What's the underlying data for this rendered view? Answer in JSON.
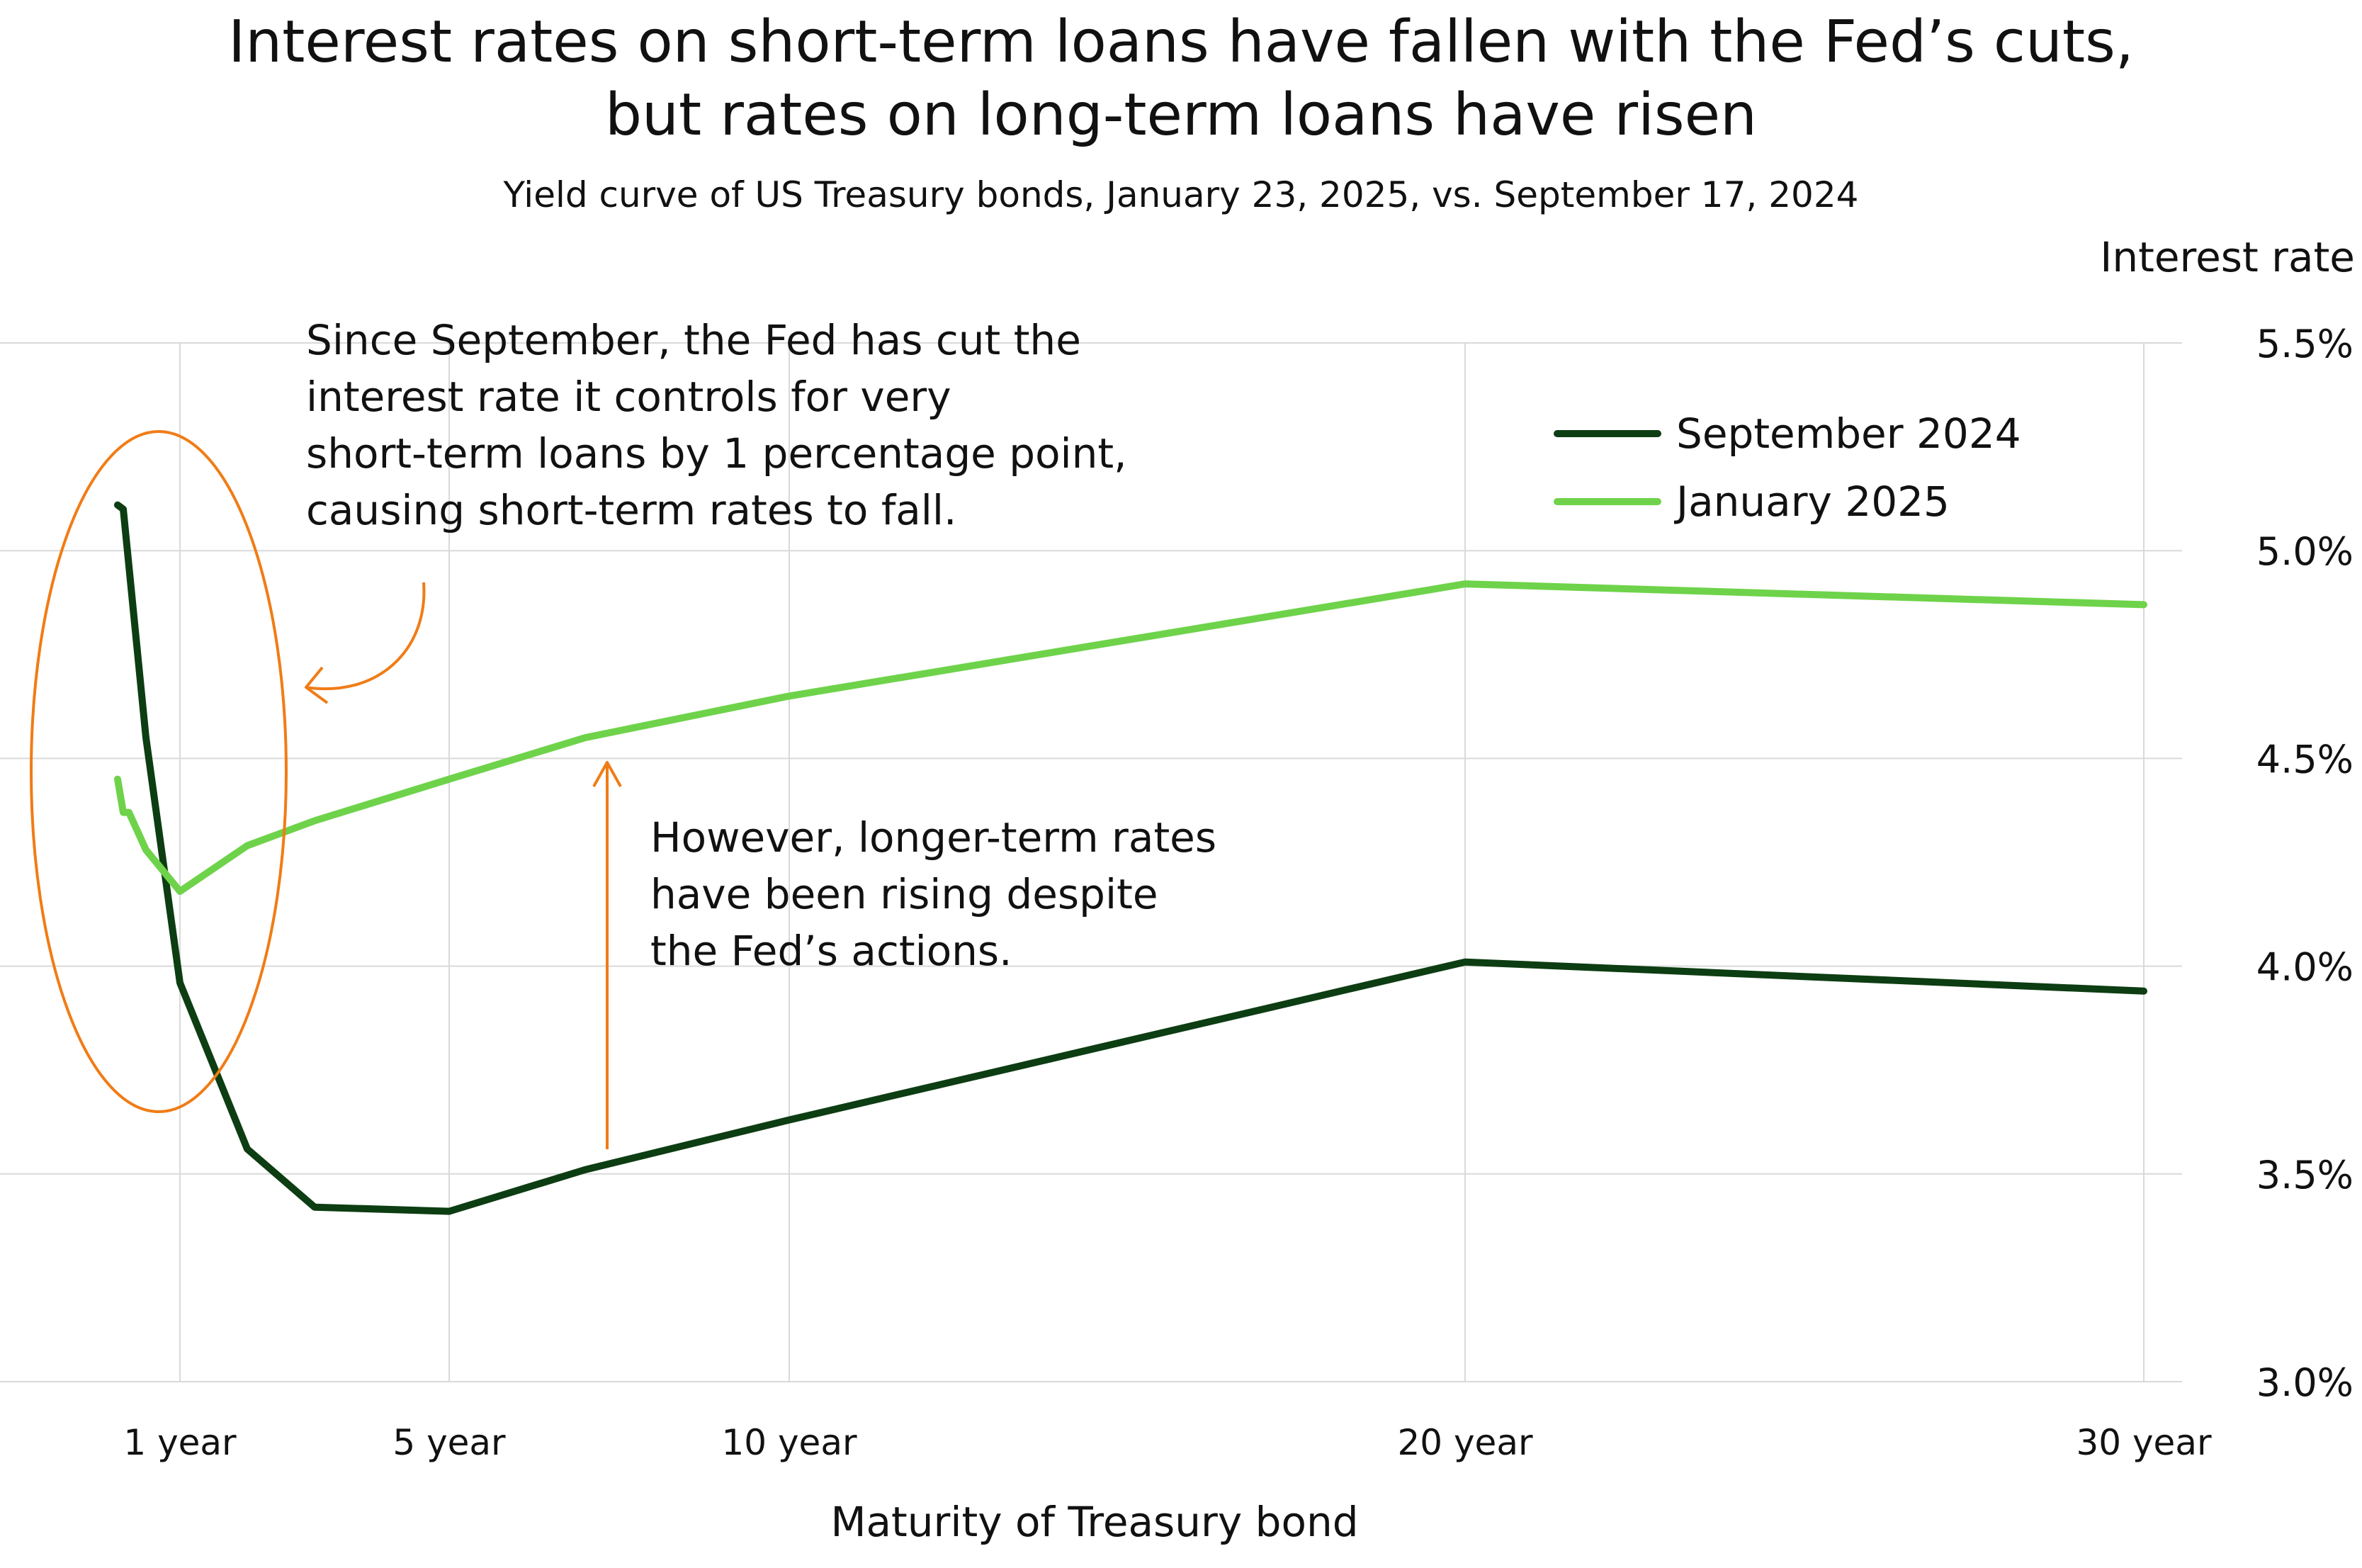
{
  "chart_data": {
    "type": "line",
    "title": "Interest rates on short-term loans have fallen with the Fed’s cuts,",
    "title_line2": "but rates on long-term loans have risen",
    "subtitle": "Yield curve of US Treasury bonds, January 23, 2025, vs. September 17, 2024",
    "ylabel": "Interest rate",
    "xlabel": "Maturity of Treasury bond",
    "ylim": [
      3.0,
      5.5
    ],
    "yticks": [
      {
        "value": 3.0,
        "label": "3.0%"
      },
      {
        "value": 3.5,
        "label": "3.5%"
      },
      {
        "value": 4.0,
        "label": "4.0%"
      },
      {
        "value": 4.5,
        "label": "4.5%"
      },
      {
        "value": 5.0,
        "label": "5.0%"
      },
      {
        "value": 5.5,
        "label": "5.5%"
      }
    ],
    "xticks": [
      {
        "value": 1,
        "label": "1 year"
      },
      {
        "value": 5,
        "label": "5 year"
      },
      {
        "value": 10,
        "label": "10 year"
      },
      {
        "value": 20,
        "label": "20 year"
      },
      {
        "value": 30,
        "label": "30 year"
      }
    ],
    "grid": true,
    "legend_position": "top-right",
    "series": [
      {
        "name": "September 2024",
        "color": "#0d3d12",
        "points": [
          {
            "x": 0.083,
            "y": 5.11
          },
          {
            "x": 0.167,
            "y": 5.1
          },
          {
            "x": 0.5,
            "y": 4.55
          },
          {
            "x": 1,
            "y": 3.96
          },
          {
            "x": 2,
            "y": 3.56
          },
          {
            "x": 3,
            "y": 3.42
          },
          {
            "x": 5,
            "y": 3.41
          },
          {
            "x": 7,
            "y": 3.51
          },
          {
            "x": 10,
            "y": 3.63
          },
          {
            "x": 20,
            "y": 4.01
          },
          {
            "x": 30,
            "y": 3.94
          }
        ]
      },
      {
        "name": "January 2025",
        "color": "#6ed34a",
        "points": [
          {
            "x": 0.083,
            "y": 4.45
          },
          {
            "x": 0.167,
            "y": 4.37
          },
          {
            "x": 0.25,
            "y": 4.37
          },
          {
            "x": 0.5,
            "y": 4.28
          },
          {
            "x": 1,
            "y": 4.18
          },
          {
            "x": 2,
            "y": 4.29
          },
          {
            "x": 3,
            "y": 4.35
          },
          {
            "x": 5,
            "y": 4.45
          },
          {
            "x": 7,
            "y": 4.55
          },
          {
            "x": 10,
            "y": 4.65
          },
          {
            "x": 20,
            "y": 4.92
          },
          {
            "x": 30,
            "y": 4.87
          }
        ]
      }
    ],
    "annotations": [
      "Since September, the Fed has cut the\ninterest rate it controls for very\nshort-term loans by 1 percentage point,\ncausing short-term rates to fall.",
      "However, longer-term rates\nhave been rising despite\nthe Fed’s actions."
    ],
    "annotation_color": "#f07c16"
  }
}
